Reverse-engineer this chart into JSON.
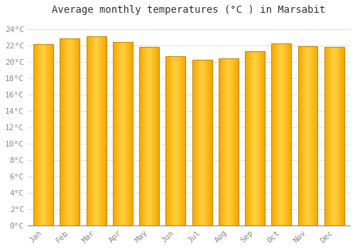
{
  "title": "Average monthly temperatures (°C ) in Marsabit",
  "months": [
    "Jan",
    "Feb",
    "Mar",
    "Apr",
    "May",
    "Jun",
    "Jul",
    "Aug",
    "Sep",
    "Oct",
    "Nov",
    "Dec"
  ],
  "values": [
    22.1,
    22.8,
    23.1,
    22.4,
    21.8,
    20.7,
    20.2,
    20.4,
    21.3,
    22.2,
    21.9,
    21.8
  ],
  "bar_color_center": "#FFD040",
  "bar_color_edge": "#F5A800",
  "bar_border_color": "#C8890A",
  "background_color": "#FFFFFF",
  "grid_color": "#E0E0E0",
  "ylim": [
    0,
    25
  ],
  "ytick_step": 2,
  "title_fontsize": 10,
  "tick_fontsize": 8,
  "tick_color": "#888888",
  "bar_width": 0.75
}
